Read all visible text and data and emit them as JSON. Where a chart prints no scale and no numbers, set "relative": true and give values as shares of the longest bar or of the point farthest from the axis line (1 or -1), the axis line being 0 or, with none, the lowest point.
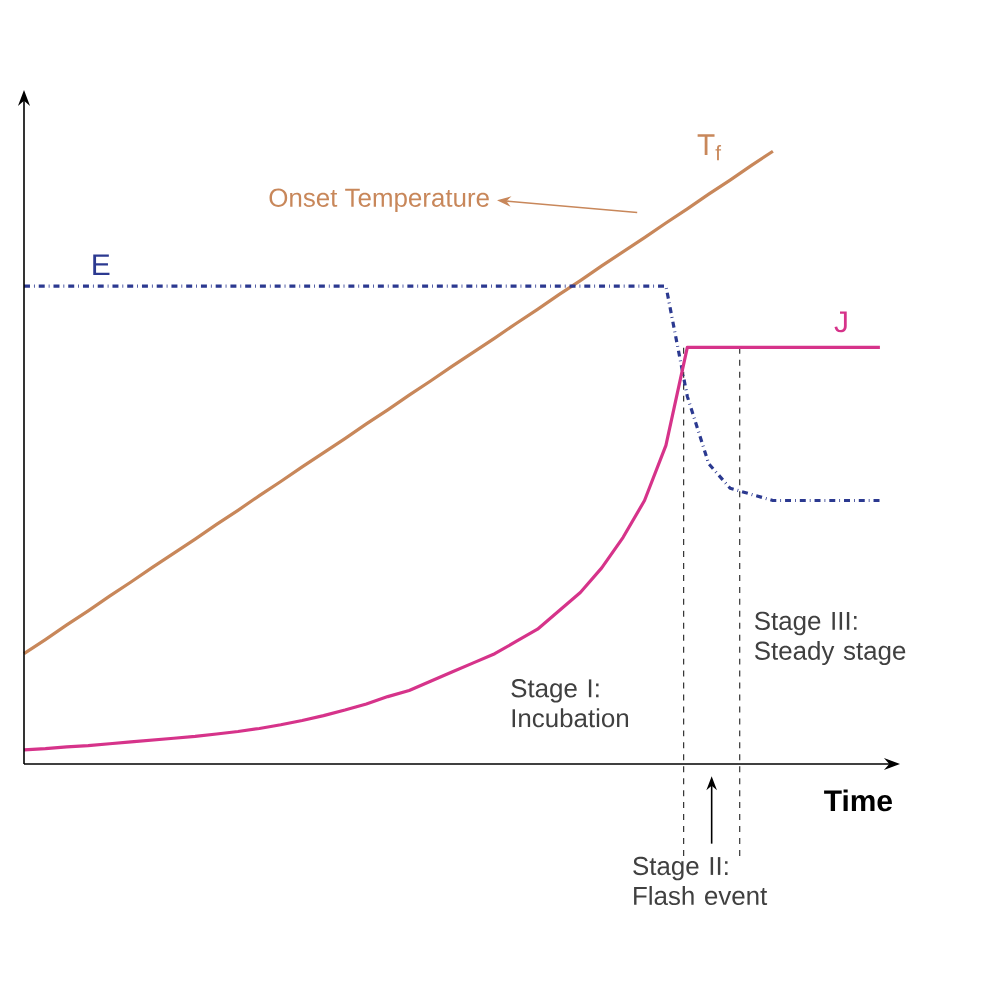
{
  "chart_data": {
    "type": "line",
    "relative": true,
    "xlabel": "Time",
    "categories": [
      null,
      null,
      null,
      null,
      null,
      null,
      null,
      null,
      null,
      null,
      null,
      null,
      null,
      null,
      null,
      null,
      null,
      null,
      null,
      null,
      null,
      null,
      null,
      null,
      null,
      null,
      null,
      null,
      null,
      null,
      null,
      null,
      null,
      null,
      null,
      null,
      null,
      null,
      null,
      null,
      null
    ],
    "series": [
      {
        "name": "T$_{f}$",
        "color": "#c8875a",
        "line_style": "solid",
        "values": [
          0.18,
          0.203,
          0.227,
          0.25,
          0.274,
          0.297,
          0.321,
          0.344,
          0.367,
          0.391,
          0.414,
          0.438,
          0.461,
          0.485,
          0.508,
          0.531,
          0.555,
          0.578,
          0.602,
          0.625,
          0.649,
          0.672,
          0.695,
          0.719,
          0.742,
          0.766,
          0.789,
          0.813,
          0.836,
          0.859,
          0.883,
          0.906,
          0.93,
          0.953,
          0.977,
          1.0,
          null,
          null,
          null,
          null,
          null
        ]
      },
      {
        "name": "E",
        "color": "#2b3990",
        "line_style": "dashdot",
        "values": [
          0.78,
          0.78,
          0.78,
          0.78,
          0.78,
          0.78,
          0.78,
          0.78,
          0.78,
          0.78,
          0.78,
          0.78,
          0.78,
          0.78,
          0.78,
          0.78,
          0.78,
          0.78,
          0.78,
          0.78,
          0.78,
          0.78,
          0.78,
          0.78,
          0.78,
          0.78,
          0.78,
          0.78,
          0.78,
          0.78,
          0.78,
          0.6,
          0.49,
          0.45,
          0.44,
          0.43,
          0.43,
          0.43,
          0.43,
          0.43,
          0.43
        ]
      },
      {
        "name": "J",
        "color": "#d6338a",
        "line_style": "solid",
        "values": [
          0.023,
          0.025,
          0.028,
          0.03,
          0.033,
          0.036,
          0.039,
          0.042,
          0.045,
          0.049,
          0.053,
          0.058,
          0.064,
          0.071,
          0.079,
          0.088,
          0.098,
          0.11,
          0.12,
          0.135,
          0.15,
          0.165,
          0.18,
          0.2,
          0.22,
          0.25,
          0.28,
          0.32,
          0.37,
          0.43,
          0.52,
          0.68,
          0.68,
          0.68,
          0.68,
          0.68,
          0.68,
          0.68,
          0.68,
          0.68,
          0.68
        ]
      }
    ],
    "annotations": [
      "Onset Temperature",
      "Stage I: Incubation",
      "Stage II: Flash event",
      "Stage III: Steady stage"
    ]
  }
}
